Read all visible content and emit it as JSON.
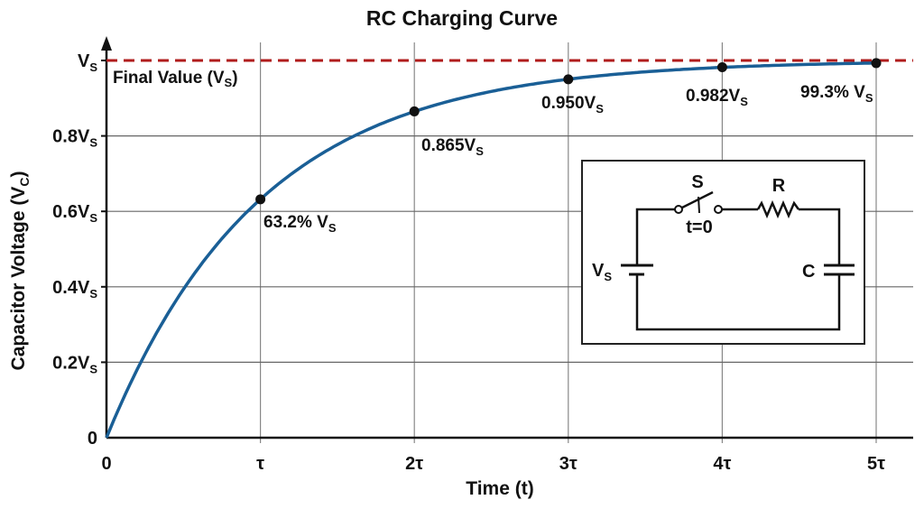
{
  "chart_data": {
    "type": "line",
    "title": "RC Charging Curve",
    "xlabel": "Time (t)",
    "ylabel": {
      "main": "Capacitor Voltage (V",
      "sub": "C",
      "end": ")"
    },
    "xlim": [
      0,
      5
    ],
    "ylim": [
      0,
      1
    ],
    "grid": true,
    "x_ticks": [
      {
        "value": 0,
        "label": "0"
      },
      {
        "value": 1,
        "label": "τ"
      },
      {
        "value": 2,
        "label": "2τ"
      },
      {
        "value": 3,
        "label": "3τ"
      },
      {
        "value": 4,
        "label": "4τ"
      },
      {
        "value": 5,
        "label": "5τ"
      }
    ],
    "y_ticks": [
      {
        "value": 0,
        "main": "0",
        "sub": ""
      },
      {
        "value": 0.2,
        "main": "0.2V",
        "sub": "S"
      },
      {
        "value": 0.4,
        "main": "0.4V",
        "sub": "S"
      },
      {
        "value": 0.6,
        "main": "0.6V",
        "sub": "S"
      },
      {
        "value": 0.8,
        "main": "0.8V",
        "sub": "S"
      },
      {
        "value": 1.0,
        "main": "V",
        "sub": "S"
      }
    ],
    "curve": {
      "formula": "1 - exp(-t/τ)",
      "color": "#1a5f96"
    },
    "final_value": {
      "value": 1.0,
      "color": "#b01c1c",
      "label_main": "Final Value (V",
      "label_sub": "S",
      "label_end": ")"
    },
    "points": [
      {
        "x": 1,
        "y": 0.632,
        "label_main": "63.2% V",
        "label_sub": "S"
      },
      {
        "x": 2,
        "y": 0.865,
        "label_main": "0.865V",
        "label_sub": "S"
      },
      {
        "x": 3,
        "y": 0.95,
        "label_main": "0.950V",
        "label_sub": "S"
      },
      {
        "x": 4,
        "y": 0.982,
        "label_main": "0.982V",
        "label_sub": "S"
      },
      {
        "x": 5,
        "y": 0.993,
        "label_main": "99.3% V",
        "label_sub": "S"
      }
    ]
  },
  "circuit": {
    "switch_label": "S",
    "switch_time": "t=0",
    "resistor_label": "R",
    "source_label_main": "V",
    "source_label_sub": "S",
    "capacitor_label": "C"
  }
}
